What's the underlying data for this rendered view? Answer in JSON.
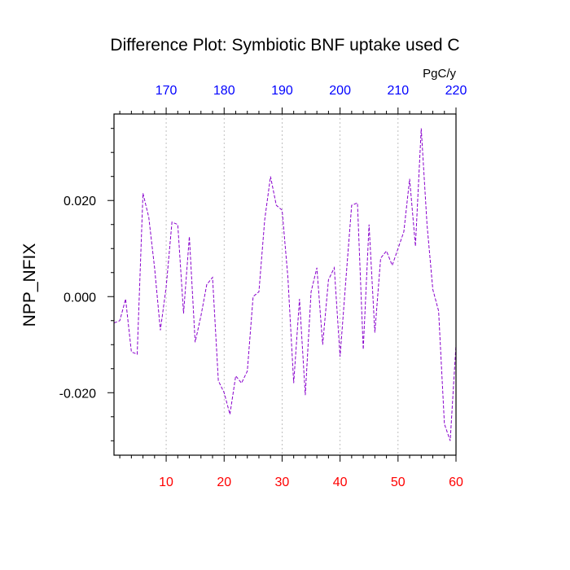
{
  "chart_data": {
    "type": "line",
    "title": "Difference Plot: Symbiotic BNF uptake used C",
    "ylabel": "NPP_NFIX",
    "top_axis_unit": "PgC/y",
    "xlim": [
      1,
      60
    ],
    "ylim": [
      -0.033,
      0.038
    ],
    "x_ticks": [
      10,
      20,
      30,
      40,
      50,
      60
    ],
    "x_tick_labels": [
      "10",
      "20",
      "30",
      "40",
      "50",
      "60"
    ],
    "top_ticks": [
      10,
      20,
      30,
      40,
      50,
      60
    ],
    "top_tick_labels": [
      "170",
      "180",
      "190",
      "200",
      "210",
      "220"
    ],
    "y_ticks": [
      0.02,
      0.0,
      -0.02
    ],
    "y_tick_labels": [
      "0.020",
      "0.000",
      "-0.020"
    ],
    "grid": "vertical dashed at x ticks",
    "colors": {
      "line": "#8800cc",
      "bottom_tick_labels": "#ff0000",
      "top_tick_labels": "#0000ff",
      "grid": "#b0b0b0"
    },
    "series": [
      {
        "x": [
          1,
          2,
          3,
          4,
          5,
          6,
          7,
          8,
          9,
          10,
          11,
          12,
          13,
          14,
          15,
          16,
          17,
          18,
          19,
          20,
          21,
          22,
          23,
          24,
          25,
          26,
          27,
          28,
          29,
          30,
          31,
          32,
          33,
          34,
          35,
          36,
          37,
          38,
          39,
          40,
          41,
          42,
          43,
          44,
          45,
          46,
          47,
          48,
          49,
          50,
          51,
          52,
          53,
          54,
          55,
          56,
          57,
          58,
          59,
          60
        ],
        "values": [
          -0.0055,
          -0.005,
          -0.0005,
          -0.0115,
          -0.012,
          0.0215,
          0.0165,
          0.006,
          -0.007,
          0.002,
          0.0155,
          0.015,
          -0.0035,
          0.0125,
          -0.0095,
          -0.004,
          0.0025,
          0.004,
          -0.0175,
          -0.02,
          -0.0245,
          -0.0165,
          -0.018,
          -0.0155,
          0.0,
          0.001,
          0.016,
          0.025,
          0.019,
          0.018,
          0.004,
          -0.018,
          -0.0005,
          -0.0205,
          0.001,
          0.006,
          -0.01,
          0.0035,
          0.006,
          -0.0125,
          0.0035,
          0.019,
          0.0195,
          -0.011,
          0.015,
          -0.0075,
          0.008,
          0.0095,
          0.0065,
          0.01,
          0.0135,
          0.0245,
          0.0105,
          0.035,
          0.015,
          0.0015,
          -0.003,
          -0.0265,
          -0.03,
          -0.01
        ]
      }
    ]
  }
}
